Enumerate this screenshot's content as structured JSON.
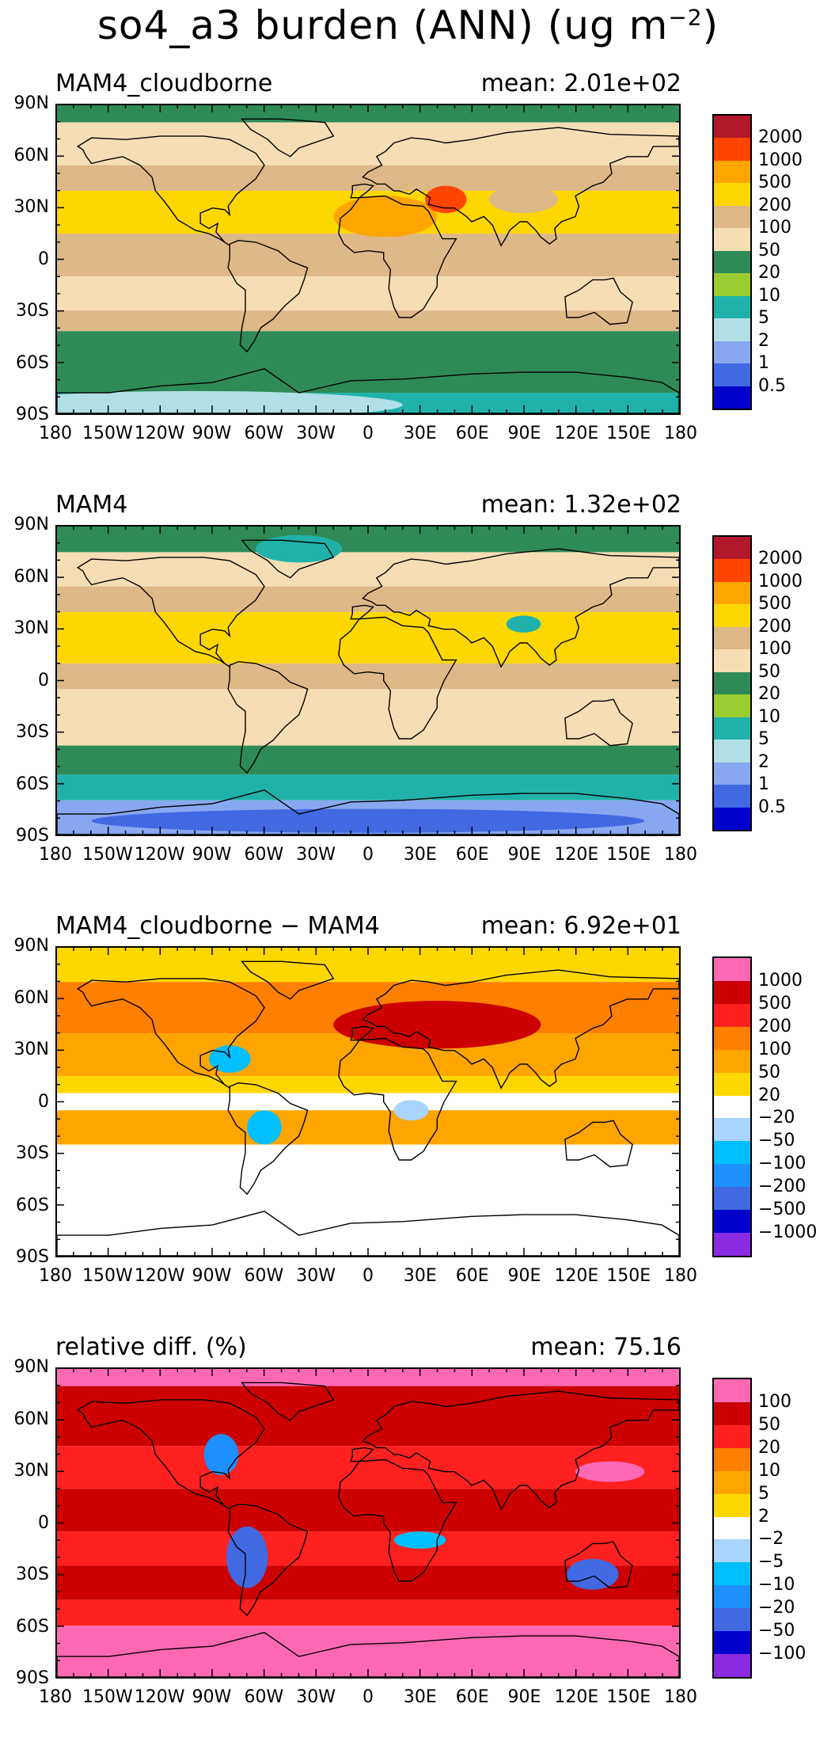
{
  "figure": {
    "title_main": "so4_a3 burden (ANN) (ug m",
    "title_exp": "−2",
    "title_end": ")"
  },
  "axes": {
    "lat_labels": [
      "90N",
      "60N",
      "30N",
      "0",
      "30S",
      "60S",
      "90S"
    ],
    "lon_labels": [
      "180",
      "150W",
      "120W",
      "90W",
      "60W",
      "30W",
      "0",
      "30E",
      "60E",
      "90E",
      "120E",
      "150E",
      "180"
    ]
  },
  "panels": [
    {
      "name": "MAM4_cloudborne",
      "mean_label": "mean: 2.01e+02",
      "levels": [
        "2000",
        "1000",
        "500",
        "200",
        "100",
        "50",
        "20",
        "10",
        "5",
        "2",
        "1",
        "0.5"
      ],
      "colors": [
        "#b2182b",
        "#ff4500",
        "#ffa500",
        "#ffd700",
        "#deb887",
        "#f5deb3",
        "#2e8b57",
        "#9acd32",
        "#20b2aa",
        "#b0e0e6",
        "#87a8f0",
        "#4169e1",
        "#0000cd"
      ],
      "field": "burden"
    },
    {
      "name": "MAM4",
      "mean_label": "mean: 1.32e+02",
      "levels": [
        "2000",
        "1000",
        "500",
        "200",
        "100",
        "50",
        "20",
        "10",
        "5",
        "2",
        "1",
        "0.5"
      ],
      "colors": [
        "#b2182b",
        "#ff4500",
        "#ffa500",
        "#ffd700",
        "#deb887",
        "#f5deb3",
        "#2e8b57",
        "#9acd32",
        "#20b2aa",
        "#b0e0e6",
        "#87a8f0",
        "#4169e1",
        "#0000cd"
      ],
      "field": "burden2"
    },
    {
      "name": "MAM4_cloudborne − MAM4",
      "mean_label": "mean: 6.92e+01",
      "levels": [
        "1000",
        "500",
        "200",
        "100",
        "50",
        "20",
        "−20",
        "−50",
        "−100",
        "−200",
        "−500",
        "−1000"
      ],
      "colors": [
        "#ff69b4",
        "#cc0000",
        "#ff2020",
        "#ff7f00",
        "#ffa500",
        "#ffd700",
        "#ffffff",
        "#a8d4ff",
        "#00bfff",
        "#1e90ff",
        "#4169e1",
        "#0000cd",
        "#8a2be2"
      ],
      "field": "diff"
    },
    {
      "name": "relative diff. (%)",
      "mean_label": "mean: 75.16",
      "levels": [
        "100",
        "50",
        "20",
        "10",
        "5",
        "2",
        "−2",
        "−5",
        "−10",
        "−20",
        "−50",
        "−100"
      ],
      "colors": [
        "#ff69b4",
        "#cc0000",
        "#ff2020",
        "#ff7f00",
        "#ffa500",
        "#ffd700",
        "#ffffff",
        "#a8d4ff",
        "#00bfff",
        "#1e90ff",
        "#4169e1",
        "#0000cd",
        "#8a2be2"
      ],
      "field": "rel"
    }
  ]
}
